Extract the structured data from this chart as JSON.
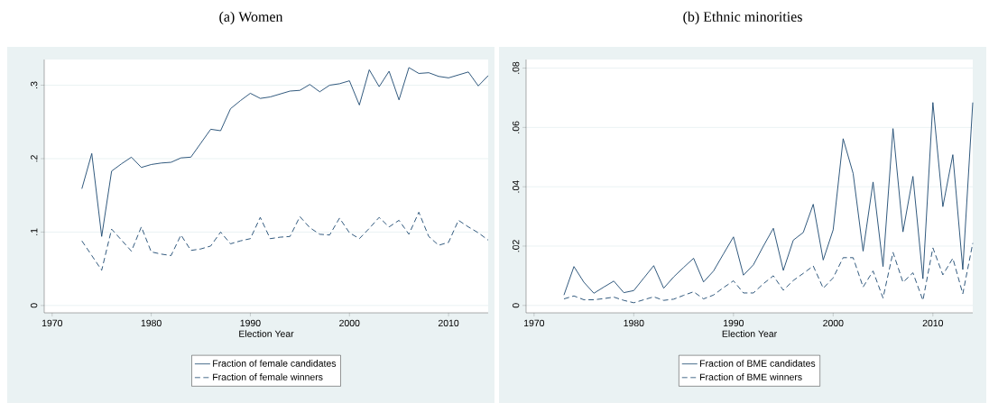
{
  "chart_data": [
    {
      "type": "line",
      "title": "(a) Women",
      "xlabel": "Election Year",
      "x": [
        1973,
        1974,
        1975,
        1976,
        1977,
        1978,
        1979,
        1980,
        1981,
        1982,
        1983,
        1984,
        1985,
        1986,
        1987,
        1988,
        1989,
        1990,
        1991,
        1992,
        1993,
        1994,
        1995,
        1996,
        1997,
        1998,
        1999,
        2000,
        2001,
        2002,
        2003,
        2004,
        2005,
        2006,
        2007,
        2008,
        2009,
        2010,
        2011,
        2012,
        2013,
        2014
      ],
      "series": [
        {
          "name": "Fraction of female candidates",
          "color": "#1a476f",
          "line_style": "solid",
          "values": [
            0.159,
            0.207,
            0.094,
            0.183,
            0.193,
            0.202,
            0.188,
            0.192,
            0.194,
            0.195,
            0.201,
            0.202,
            0.221,
            0.24,
            0.238,
            0.268,
            0.279,
            0.289,
            0.282,
            0.284,
            0.288,
            0.292,
            0.293,
            0.301,
            0.291,
            0.3,
            0.302,
            0.306,
            0.273,
            0.321,
            0.298,
            0.319,
            0.28,
            0.324,
            0.316,
            0.317,
            0.312,
            0.31,
            0.314,
            0.318,
            0.299,
            0.313
          ]
        },
        {
          "name": "Fraction of female winners",
          "color": "#1a476f",
          "line_style": "dashed",
          "values": [
            0.088,
            0.068,
            0.048,
            0.104,
            0.089,
            0.074,
            0.107,
            0.073,
            0.07,
            0.068,
            0.096,
            0.075,
            0.077,
            0.081,
            0.1,
            0.084,
            0.088,
            0.091,
            0.12,
            0.091,
            0.093,
            0.094,
            0.121,
            0.106,
            0.097,
            0.096,
            0.119,
            0.099,
            0.091,
            0.105,
            0.12,
            0.107,
            0.116,
            0.097,
            0.127,
            0.094,
            0.082,
            0.086,
            0.116,
            0.107,
            0.099,
            0.089
          ]
        }
      ],
      "xlim": [
        1969.2,
        2014
      ],
      "ylim": [
        -0.01,
        0.335
      ],
      "xticks": [
        1970,
        1980,
        1990,
        2000,
        2010
      ],
      "yticks": [
        0,
        {
          "value": 0.1,
          "label": ".1"
        },
        {
          "value": 0.2,
          "label": ".2"
        },
        {
          "value": 0.3,
          "label": ".3"
        }
      ],
      "grid": "y",
      "legend": "bottom",
      "marker": "none"
    },
    {
      "type": "line",
      "title": "(b) Ethnic minorities",
      "xlabel": "Election Year",
      "x": [
        1973,
        1974,
        1975,
        1976,
        1977,
        1978,
        1979,
        1980,
        1981,
        1982,
        1983,
        1984,
        1985,
        1986,
        1987,
        1988,
        1989,
        1990,
        1991,
        1992,
        1993,
        1994,
        1995,
        1996,
        1997,
        1998,
        1999,
        2000,
        2001,
        2002,
        2003,
        2004,
        2005,
        2006,
        2007,
        2008,
        2009,
        2010,
        2011,
        2012,
        2013,
        2014
      ],
      "series": [
        {
          "name": "Fraction of BME candidates",
          "color": "#1a476f",
          "line_style": "solid",
          "values": [
            0.0035,
            0.0131,
            0.0078,
            0.0041,
            0.0062,
            0.0082,
            0.0043,
            0.005,
            0.0092,
            0.0134,
            0.0058,
            0.0096,
            0.0128,
            0.0159,
            0.0079,
            0.0116,
            0.0174,
            0.0231,
            0.0102,
            0.0137,
            0.02,
            0.026,
            0.0118,
            0.022,
            0.0246,
            0.0341,
            0.0153,
            0.0255,
            0.0562,
            0.0445,
            0.0183,
            0.0416,
            0.0131,
            0.0596,
            0.0248,
            0.0435,
            0.009,
            0.0684,
            0.0333,
            0.0508,
            0.0121,
            0.0684
          ]
        },
        {
          "name": "Fraction of BME winners",
          "color": "#1a476f",
          "line_style": "dashed",
          "values": [
            0.0022,
            0.0032,
            0.0019,
            0.0019,
            0.0023,
            0.0028,
            0.0017,
            0.0009,
            0.0019,
            0.0029,
            0.0017,
            0.0021,
            0.0034,
            0.0046,
            0.0022,
            0.0035,
            0.006,
            0.0083,
            0.0042,
            0.0042,
            0.0073,
            0.01,
            0.0051,
            0.0084,
            0.0108,
            0.0133,
            0.0058,
            0.0093,
            0.0161,
            0.0161,
            0.0062,
            0.0116,
            0.0025,
            0.0179,
            0.0078,
            0.011,
            0.0017,
            0.0194,
            0.0103,
            0.0159,
            0.0039,
            0.021
          ]
        }
      ],
      "xlim": [
        1969.2,
        2014
      ],
      "ylim": [
        -0.0025,
        0.0829
      ],
      "xticks": [
        1970,
        1980,
        1990,
        2000,
        2010
      ],
      "yticks": [
        0,
        {
          "value": 0.02,
          "label": ".02"
        },
        {
          "value": 0.04,
          "label": ".04"
        },
        {
          "value": 0.06,
          "label": ".06"
        },
        {
          "value": 0.08,
          "label": ".08"
        }
      ],
      "grid": "y",
      "legend": "bottom",
      "marker": "none"
    }
  ]
}
